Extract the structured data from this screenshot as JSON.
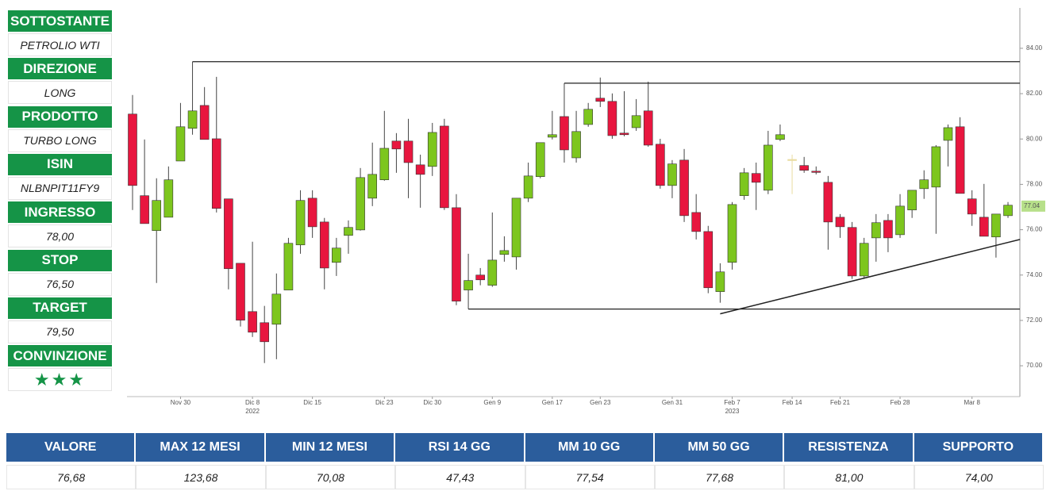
{
  "sidebar": [
    {
      "label": "SOTTOSTANTE",
      "value": "PETROLIO WTI"
    },
    {
      "label": "DIREZIONE",
      "value": "LONG"
    },
    {
      "label": "PRODOTTO",
      "value": "TURBO LONG"
    },
    {
      "label": "ISIN",
      "value": "NLBNPIT11FY9"
    },
    {
      "label": "INGRESSO",
      "value": "78,00"
    },
    {
      "label": "STOP",
      "value": "76,50"
    },
    {
      "label": "TARGET",
      "value": "79,50"
    },
    {
      "label": "CONVINZIONE",
      "value": "★★★"
    }
  ],
  "stats_table": {
    "headers": [
      "VALORE",
      "MAX 12 MESI",
      "MIN 12 MESI",
      "RSI 14 GG",
      "MM 10 GG",
      "MM 50 GG",
      "RESISTENZA",
      "SUPPORTO"
    ],
    "values": [
      "76,68",
      "123,68",
      "70,08",
      "47,43",
      "77,54",
      "77,68",
      "81,00",
      "74,00"
    ]
  },
  "chart_data": {
    "type": "candlestick",
    "categories": [
      null,
      null,
      null,
      null,
      "Nov 30",
      null,
      null,
      null,
      null,
      null,
      "Dic 8",
      null,
      null,
      null,
      null,
      "Dic 15",
      null,
      null,
      null,
      null,
      null,
      "Dic 23",
      null,
      null,
      null,
      "Dic 30",
      null,
      null,
      null,
      null,
      "Gen 9",
      null,
      null,
      null,
      null,
      "Gen 17",
      null,
      null,
      null,
      "Gen 23",
      null,
      null,
      null,
      null,
      null,
      "Gen 31",
      null,
      null,
      null,
      null,
      "Feb 7",
      null,
      null,
      null,
      null,
      "Feb 14",
      null,
      null,
      null,
      "Feb 21",
      null,
      null,
      null,
      null,
      "Feb 28",
      null,
      null,
      null,
      null,
      null,
      "Mar 8",
      null,
      null,
      null
    ],
    "year_labels": [
      null,
      null,
      null,
      null,
      null,
      null,
      null,
      null,
      null,
      null,
      "2022",
      null,
      null,
      null,
      null,
      null,
      null,
      null,
      null,
      null,
      null,
      null,
      null,
      null,
      null,
      null,
      null,
      null,
      null,
      null,
      null,
      null,
      null,
      null,
      null,
      null,
      null,
      null,
      null,
      null,
      null,
      null,
      null,
      null,
      null,
      null,
      null,
      null,
      null,
      null,
      "2023",
      null,
      null,
      null,
      null,
      null,
      null,
      null,
      null,
      null,
      null,
      null,
      null,
      null,
      null,
      null,
      null,
      null,
      null,
      null,
      null,
      null,
      null,
      null
    ],
    "open": [
      81.1,
      77.5,
      75.96,
      76.55,
      79.03,
      80.47,
      81.48,
      80.01,
      77.36,
      74.52,
      72.39,
      71.9,
      71.83,
      73.34,
      75.33,
      77.39,
      76.34,
      74.56,
      75.75,
      75.99,
      77.39,
      78.2,
      79.91,
      79.91,
      78.86,
      78.79,
      80.57,
      76.97,
      73.34,
      74.0,
      73.55,
      74.91,
      74.8,
      77.39,
      78.34,
      80.08,
      80.99,
      79.17,
      80.64,
      81.8,
      81.66,
      80.26,
      80.5,
      81.24,
      79.77,
      77.95,
      79.07,
      76.76,
      75.92,
      73.27,
      74.56,
      77.5,
      78.48,
      77.74,
      79.98,
      79.1,
      78.83,
      78.58,
      78.09,
      76.55,
      76.1,
      73.96,
      75.64,
      76.41,
      75.78,
      76.87,
      77.81,
      77.88,
      79.94,
      80.54,
      77.36,
      76.55,
      75.68,
      76.62
    ],
    "high": [
      81.94,
      79.98,
      78.27,
      78.79,
      81.59,
      83.41,
      82.29,
      82.74,
      77.36,
      74.52,
      75.47,
      72.64,
      74.07,
      75.64,
      77.74,
      77.74,
      76.52,
      75.64,
      76.41,
      78.72,
      79.84,
      81.24,
      80.26,
      80.89,
      79.31,
      80.71,
      80.89,
      77.57,
      74.94,
      74.31,
      76.76,
      75.71,
      77.39,
      78.96,
      79.84,
      81.24,
      82.46,
      81.24,
      81.59,
      82.71,
      82.01,
      82.11,
      81.76,
      82.53,
      80.01,
      79.07,
      79.56,
      77.57,
      76.17,
      74.52,
      77.22,
      78.72,
      78.96,
      80.36,
      80.64,
      79.31,
      79.21,
      78.79,
      78.37,
      76.69,
      76.34,
      75.64,
      76.69,
      76.69,
      77.57,
      77.74,
      78.62,
      79.73,
      80.64,
      80.96,
      77.74,
      78.02,
      76.52,
      77.22
    ],
    "low": [
      76.87,
      76.27,
      73.65,
      76.55,
      79.03,
      80.19,
      79.98,
      76.76,
      73.37,
      71.73,
      71.27,
      70.12,
      70.29,
      73.34,
      74.94,
      75.64,
      73.37,
      73.96,
      74.94,
      75.96,
      77.04,
      78.16,
      78.51,
      77.39,
      76.97,
      78.37,
      76.87,
      72.67,
      72.5,
      73.55,
      73.48,
      74.59,
      74.24,
      77.22,
      78.27,
      79.98,
      78.96,
      78.96,
      80.54,
      81.41,
      80.01,
      80.12,
      80.36,
      79.66,
      77.81,
      77.39,
      76.34,
      75.57,
      73.2,
      72.78,
      74.24,
      77.32,
      76.87,
      77.57,
      79.91,
      77.57,
      78.51,
      78.44,
      75.12,
      75.64,
      73.83,
      73.83,
      74.59,
      75.01,
      75.64,
      76.52,
      77.36,
      75.82,
      78.79,
      77.6,
      76.17,
      75.71,
      74.77,
      76.52
    ],
    "close": [
      77.95,
      76.27,
      77.29,
      78.2,
      80.54,
      81.24,
      79.98,
      76.94,
      74.28,
      72.01,
      71.48,
      71.06,
      73.16,
      75.4,
      77.29,
      76.13,
      74.31,
      75.19,
      76.1,
      78.3,
      78.44,
      79.59,
      79.56,
      78.96,
      78.44,
      80.29,
      76.97,
      72.85,
      73.76,
      73.79,
      74.66,
      75.08,
      77.39,
      78.37,
      79.84,
      80.19,
      79.52,
      80.33,
      81.31,
      81.66,
      80.15,
      80.19,
      81.03,
      79.73,
      77.95,
      78.9,
      76.62,
      75.92,
      73.44,
      74.14,
      77.11,
      78.51,
      78.09,
      79.73,
      80.19,
      79.1,
      78.62,
      78.55,
      76.34,
      76.13,
      73.96,
      75.4,
      76.31,
      75.64,
      77.04,
      77.74,
      78.2,
      79.66,
      80.5,
      77.6,
      76.69,
      75.71,
      76.69,
      77.08
    ],
    "colors": {
      "up": "#7dc61e",
      "down": "#e8163f",
      "flat": "#e9dca0"
    },
    "ylim": [
      68.64,
      85.78
    ],
    "yticks": [
      {
        "value": 70,
        "label": "70.00"
      },
      {
        "value": 72,
        "label": "72.00"
      },
      {
        "value": 74,
        "label": "74.00"
      },
      {
        "value": 76,
        "label": "76.00"
      },
      {
        "value": 78,
        "label": "78.00"
      },
      {
        "value": 80,
        "label": "80.00"
      },
      {
        "value": 82,
        "label": "82.00"
      },
      {
        "value": 84,
        "label": "84.00"
      }
    ],
    "levels": [
      {
        "value": 83.41,
        "start": 5
      },
      {
        "value": 82.46,
        "start": 36
      },
      {
        "value": 72.5,
        "start": 28
      }
    ],
    "trendline": [
      {
        "x": 49,
        "y": 72.29
      },
      {
        "x": 74,
        "y": 75.57
      }
    ],
    "last_price": 77.04
  }
}
